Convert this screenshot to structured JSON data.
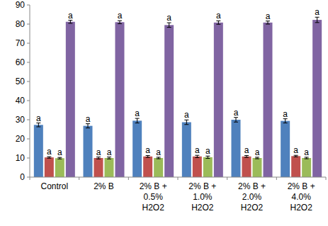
{
  "chart_data": {
    "type": "bar",
    "categories": [
      "Control",
      "2% B",
      "2% B + 0.5% H2O2",
      "2% B + 1.0% H2O2",
      "2% B + 2.0% H2O2",
      "2% B + 4.0% H2O2"
    ],
    "series": [
      {
        "color": "#4f81bd",
        "values": [
          27.3,
          26.8,
          29.5,
          28.7,
          30.0,
          29.4
        ],
        "errors": [
          1.0,
          1.1,
          1.2,
          1.2,
          1.2,
          1.1
        ],
        "annotations": [
          "a",
          "a",
          "a",
          "a",
          "a",
          "a"
        ]
      },
      {
        "color": "#c0504d",
        "values": [
          10.3,
          10.0,
          10.8,
          10.8,
          10.8,
          11.0
        ],
        "errors": [
          0.4,
          0.5,
          0.5,
          0.6,
          0.5,
          0.4
        ],
        "annotations": [
          "a",
          "a",
          "a",
          "a",
          "a",
          "a"
        ]
      },
      {
        "color": "#9bbb59",
        "values": [
          9.9,
          10.0,
          10.0,
          10.4,
          10.0,
          10.0
        ],
        "errors": [
          0.4,
          0.5,
          0.4,
          0.6,
          0.4,
          0.4
        ],
        "annotations": [
          "a",
          "a",
          "a",
          "a",
          "a",
          "a"
        ]
      },
      {
        "color": "#8064a2",
        "values": [
          81.2,
          81.0,
          79.5,
          80.8,
          80.8,
          82.2
        ],
        "errors": [
          0.8,
          0.8,
          1.2,
          0.9,
          0.8,
          1.4
        ],
        "annotations": [
          "a",
          "a",
          "a",
          "a",
          "a",
          "a"
        ]
      }
    ],
    "ylim": [
      0,
      90
    ],
    "yticks": [
      0,
      10,
      20,
      30,
      40,
      50,
      60,
      70,
      80,
      90
    ],
    "grid": false
  }
}
